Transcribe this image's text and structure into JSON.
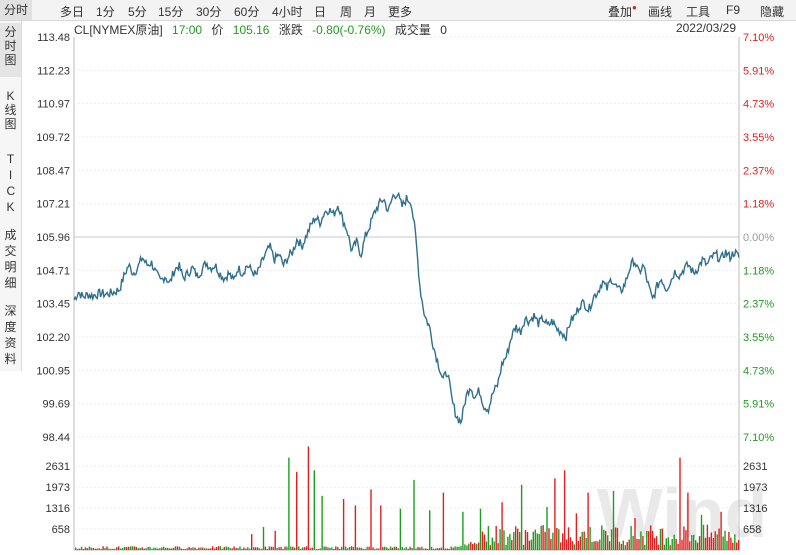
{
  "toolbar": {
    "tabs": [
      "分时",
      "多日",
      "1分",
      "5分",
      "15分",
      "30分",
      "60分",
      "4小时",
      "日",
      "周",
      "月",
      "更多"
    ],
    "active_tab": "分时",
    "right_items": [
      "叠加",
      "画线",
      "工具",
      "F9",
      "隐藏"
    ]
  },
  "sidebar": {
    "items": [
      {
        "label": "分时图",
        "active": true
      },
      {
        "label": "K线图",
        "active": false
      },
      {
        "label": "TICK",
        "active": false
      },
      {
        "label": "成交明细",
        "active": false
      },
      {
        "label": "深度资料",
        "active": false
      }
    ]
  },
  "info": {
    "symbol": "CL[NYMEX原油]",
    "time": "17:00",
    "price_label": "价",
    "price": "105.16",
    "change_label": "涨跌",
    "change": "-0.80(-0.76%)",
    "volume_label": "成交量",
    "volume": "0",
    "date": "2022/03/29"
  },
  "watermark": "Wind",
  "colors": {
    "price_line": "#2e6f8e",
    "up": "#e02020",
    "down": "#1f9c1f",
    "axis_text": "#333333",
    "pct_up": "#e02020",
    "pct_flat": "#999999",
    "pct_down": "#1f9c1f"
  },
  "chart_data": {
    "type": "line",
    "price_axis": {
      "ticks": [
        "113.48",
        "112.23",
        "110.97",
        "109.72",
        "108.47",
        "107.21",
        "105.96",
        "104.71",
        "103.45",
        "102.20",
        "100.95",
        "99.69",
        "98.44"
      ],
      "ylim": [
        98.44,
        113.48
      ],
      "reference": 105.96
    },
    "percent_axis": {
      "ticks": [
        "7.10%",
        "5.91%",
        "4.73%",
        "3.55%",
        "2.37%",
        "1.18%",
        "0.00%",
        "1.18%",
        "2.37%",
        "3.55%",
        "4.73%",
        "5.91%",
        "7.10%"
      ]
    },
    "volume_axis": {
      "ticks": [
        "2631",
        "1973",
        "1316",
        "658"
      ],
      "ylim": [
        0,
        3200
      ]
    },
    "series": [
      {
        "values": [
          103.6,
          103.9,
          103.7,
          103.8,
          103.75,
          103.8,
          103.85,
          103.8,
          103.85,
          103.9,
          104.0,
          104.5,
          104.9,
          104.6,
          104.8,
          105.2,
          104.9,
          105.0,
          104.6,
          104.3,
          104.5,
          104.2,
          104.7,
          104.9,
          104.4,
          104.6,
          104.8,
          104.5,
          104.7,
          105.0,
          104.8,
          104.9,
          104.6,
          104.4,
          104.6,
          104.3,
          104.8,
          104.6,
          104.9,
          104.7,
          104.5,
          104.9,
          105.3,
          105.6,
          105.1,
          105.3,
          104.9,
          105.2,
          105.4,
          105.9,
          105.6,
          106.0,
          106.4,
          106.7,
          106.5,
          106.9,
          107.0,
          106.8,
          107.2,
          106.6,
          106.2,
          105.4,
          105.8,
          105.3,
          106.0,
          106.4,
          106.9,
          107.2,
          107.4,
          106.9,
          107.5,
          107.6,
          107.1,
          107.4,
          107.3,
          106.0,
          104.0,
          103.0,
          102.6,
          101.8,
          101.2,
          100.6,
          100.9,
          99.8,
          99.2,
          99.0,
          99.9,
          100.4,
          99.9,
          100.2,
          99.6,
          99.5,
          100.1,
          100.4,
          101.2,
          101.5,
          102.2,
          102.6,
          102.4,
          102.9,
          102.8,
          103.0,
          102.7,
          102.9,
          102.6,
          102.8,
          102.5,
          102.4,
          102.2,
          102.8,
          103.0,
          103.4,
          103.5,
          103.2,
          103.7,
          103.9,
          104.3,
          104.0,
          104.4,
          104.1,
          103.9,
          104.2,
          104.8,
          105.1,
          104.6,
          104.9,
          104.2,
          103.6,
          104.1,
          104.4,
          104.0,
          104.3,
          104.7,
          104.5,
          104.8,
          104.9,
          104.6,
          104.8,
          105.1,
          104.9,
          105.2,
          105.3,
          105.1,
          105.4,
          105.2,
          105.4,
          105.2
        ]
      }
    ],
    "volume_spikes": [
      {
        "pos": 0.78,
        "value": 2900
      },
      {
        "pos": 0.8,
        "value": 2450
      },
      {
        "pos": 0.83,
        "value": 3250
      },
      {
        "pos": 0.85,
        "value": 2500
      },
      {
        "pos": 0.87,
        "value": 1700
      },
      {
        "pos": 0.74,
        "value": 600
      },
      {
        "pos": 0.71,
        "value": 720
      },
      {
        "pos": 0.68,
        "value": 500
      },
      {
        "pos": 0.93,
        "value": 1600
      },
      {
        "pos": 0.96,
        "value": 1400
      },
      {
        "pos": 1.0,
        "value": 1900
      },
      {
        "pos": 1.03,
        "value": 1400
      },
      {
        "pos": 1.08,
        "value": 1300
      },
      {
        "pos": 1.12,
        "value": 2200
      },
      {
        "pos": 1.16,
        "value": 1250
      },
      {
        "pos": 1.2,
        "value": 1800
      },
      {
        "pos": 1.25,
        "value": 1200
      },
      {
        "pos": 1.3,
        "value": 1300
      },
      {
        "pos": 1.36,
        "value": 1500
      },
      {
        "pos": 1.41,
        "value": 2050
      },
      {
        "pos": 1.48,
        "value": 1350
      },
      {
        "pos": 1.5,
        "value": 2250
      },
      {
        "pos": 1.53,
        "value": 2500
      },
      {
        "pos": 1.56,
        "value": 1150
      },
      {
        "pos": 1.59,
        "value": 1800
      },
      {
        "pos": 1.66,
        "value": 1850
      },
      {
        "pos": 1.72,
        "value": 1000
      },
      {
        "pos": 1.84,
        "value": 2900
      },
      {
        "pos": 1.86,
        "value": 1800
      },
      {
        "pos": 1.9,
        "value": 1100
      },
      {
        "pos": 1.95,
        "value": 1200
      }
    ]
  }
}
